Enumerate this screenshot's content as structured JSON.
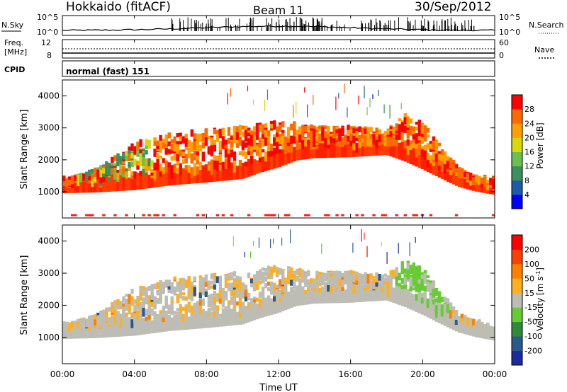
{
  "header": {
    "radar": "Hokkaido (fitACF)",
    "beam": "Beam 11",
    "date": "30/Sep/2012"
  },
  "summary_panels": {
    "nsky": {
      "label": "N.Sky",
      "right_label": "N.Search",
      "ticks_left": [
        "10^5",
        "10^0"
      ],
      "ticks_right": [
        "10^5",
        "10^0"
      ]
    },
    "freq": {
      "label_lines": [
        "Freq.",
        "[MHz]"
      ],
      "ticks_left": [
        "12",
        "8"
      ],
      "ticks_right": [
        "60",
        "0"
      ],
      "right_label": "Nave"
    },
    "cpid": {
      "label": "CPID",
      "value": "normal (fast) 151"
    }
  },
  "chart_data": [
    {
      "type": "heatmap",
      "name": "power",
      "ylabel": "Slant Range [km]",
      "yticks": [
        "1000",
        "2000",
        "3000",
        "4000"
      ],
      "ylim": [
        180,
        4500
      ],
      "colorbar_label": "Power [dB]",
      "colorbar_ticks": [
        "4",
        "8",
        "12",
        "16",
        "20",
        "24",
        "28"
      ],
      "colorbar_colors": [
        "#0000ff",
        "#1e5aa8",
        "#3a9060",
        "#6cc04e",
        "#d8d80c",
        "#ffa000",
        "#ff6a00",
        "#ff0000"
      ],
      "range_lower_edge_km": [
        {
          "t": 0,
          "km": 950
        },
        {
          "t": 2,
          "km": 980
        },
        {
          "t": 4,
          "km": 1050
        },
        {
          "t": 6,
          "km": 1200
        },
        {
          "t": 8,
          "km": 1290
        },
        {
          "t": 10,
          "km": 1400
        },
        {
          "t": 11,
          "km": 1600
        },
        {
          "t": 12,
          "km": 1760
        },
        {
          "t": 13,
          "km": 1980
        },
        {
          "t": 14,
          "km": 2050
        },
        {
          "t": 16,
          "km": 2080
        },
        {
          "t": 18,
          "km": 2150
        },
        {
          "t": 19,
          "km": 1950
        },
        {
          "t": 20,
          "km": 1700
        },
        {
          "t": 21,
          "km": 1420
        },
        {
          "t": 22,
          "km": 1150
        },
        {
          "t": 23,
          "km": 1000
        },
        {
          "t": 24,
          "km": 900
        }
      ],
      "range_upper_edge_km": [
        {
          "t": 0,
          "km": 1400
        },
        {
          "t": 2,
          "km": 1800
        },
        {
          "t": 4,
          "km": 2600
        },
        {
          "t": 6,
          "km": 2900
        },
        {
          "t": 8,
          "km": 3000
        },
        {
          "t": 10,
          "km": 3100
        },
        {
          "t": 12,
          "km": 3300
        },
        {
          "t": 14,
          "km": 3100
        },
        {
          "t": 16,
          "km": 3100
        },
        {
          "t": 18,
          "km": 3000
        },
        {
          "t": 19,
          "km": 3500
        },
        {
          "t": 20,
          "km": 3200
        },
        {
          "t": 21,
          "km": 2500
        },
        {
          "t": 22,
          "km": 1800
        },
        {
          "t": 23,
          "km": 1500
        },
        {
          "t": 24,
          "km": 1300
        }
      ]
    },
    {
      "type": "heatmap",
      "name": "velocity",
      "ylabel": "Slant Range [km]",
      "yticks": [
        "1000",
        "2000",
        "3000",
        "4000"
      ],
      "ylim": [
        180,
        4500
      ],
      "colorbar_label": "Velocity [m s^-1]",
      "colorbar_ticks": [
        "200",
        "100",
        "50",
        "15",
        "-15",
        "-50",
        "-100",
        "-200"
      ],
      "colorbar_colors": [
        "#1a2aa0",
        "#2a5a8a",
        "#2f8a3a",
        "#66cc33",
        "#bdbdb5",
        "#ffb020",
        "#ff8000",
        "#ff4000",
        "#ff0000"
      ]
    }
  ],
  "time_axis": {
    "label": "Time UT",
    "ticks": [
      "00:00",
      "04:00",
      "08:00",
      "12:00",
      "16:00",
      "20:00",
      "00:00"
    ],
    "tick_hours": [
      0,
      4,
      8,
      12,
      16,
      20,
      24
    ]
  }
}
